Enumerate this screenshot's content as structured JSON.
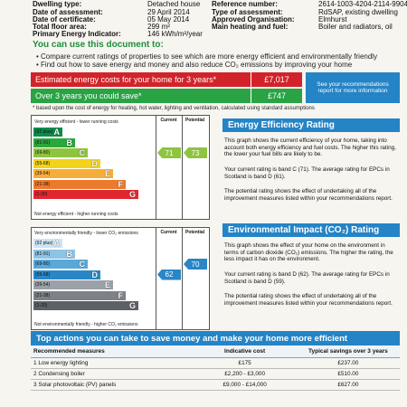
{
  "property": {
    "rows": [
      {
        "label": "Dwelling type:",
        "value": "Detached house"
      },
      {
        "label": "Date of assessment:",
        "value": "29 April 2014"
      },
      {
        "label": "Date of certificate:",
        "value": "05 May 2014"
      },
      {
        "label": "Total floor area:",
        "value": "299 m²"
      },
      {
        "label": "Primary Energy Indicator:",
        "value": "146 kWh/m²/year"
      }
    ],
    "right_rows": [
      {
        "label": "Reference number:",
        "value": "2614-1003-4204-2114-9904"
      },
      {
        "label": "Type of assessment:",
        "value": "RdSAP, existing dwelling"
      },
      {
        "label": "Approved Organisation:",
        "value": "Elmhurst"
      },
      {
        "label": "Main heating and fuel:",
        "value": "Boiler and radiators, oil"
      }
    ]
  },
  "use_doc": {
    "heading": "You can use this document to:",
    "bullets": [
      "Compare current ratings of properties to see which are more energy efficient and environmentally friendly",
      "Find out how to save energy and money and also reduce CO₂ emissions by improving your home"
    ]
  },
  "costs": {
    "estimated_label": "Estimated energy costs for your home for 3 years*",
    "estimated_value": "£7,017",
    "saving_label": "Over 3 years you could save*",
    "saving_value": "£747",
    "see_label": "See your recommendations report for more information",
    "footnote": "* based upon the cost of energy for heating, hot water, lighting and ventilation, calculated using standard assumptions"
  },
  "ee_chart": {
    "top_label": "Very energy efficient - lower running costs",
    "bottom_label": "Not energy efficient - higher running costs",
    "current_header": "Current",
    "potential_header": "Potential",
    "bands": [
      {
        "range": "(92 plus)",
        "letter": "A",
        "color": "#0f8a4a"
      },
      {
        "range": "(81-91)",
        "letter": "B",
        "color": "#2aa73d"
      },
      {
        "range": "(69-80)",
        "letter": "C",
        "color": "#8ec43f"
      },
      {
        "range": "(55-68)",
        "letter": "D",
        "color": "#f2d21a"
      },
      {
        "range": "(39-54)",
        "letter": "E",
        "color": "#f5ae3b"
      },
      {
        "range": "(21-38)",
        "letter": "F",
        "color": "#ec7a2c"
      },
      {
        "range": "(1-20)",
        "letter": "G",
        "color": "#e1272e"
      }
    ],
    "current_value": "71",
    "potential_value": "73",
    "arrow_color": "#8ec43f"
  },
  "ei_chart": {
    "top_label": "Very environmentally friendly - lower CO₂ emissions",
    "bottom_label": "Not environmentally friendly - higher CO₂ emissions",
    "current_header": "Current",
    "potential_header": "Potential",
    "bands": [
      {
        "range": "(92 plus)",
        "letter": "A",
        "color": "#cde4f2"
      },
      {
        "range": "(81-91)",
        "letter": "B",
        "color": "#8ec3e6"
      },
      {
        "range": "(69-80)",
        "letter": "C",
        "color": "#5aa7d8"
      },
      {
        "range": "(55-68)",
        "letter": "D",
        "color": "#2a86c6"
      },
      {
        "range": "(39-54)",
        "letter": "E",
        "color": "#9aa1a8"
      },
      {
        "range": "(21-38)",
        "letter": "F",
        "color": "#7c8288"
      },
      {
        "range": "(1-20)",
        "letter": "G",
        "color": "#5d6166"
      }
    ],
    "current_value": "62",
    "potential_value": "70",
    "arrow_color": "#2a86c6"
  },
  "eer": {
    "title": "Energy Efficiency Rating",
    "p1": "This graph shows the current efficiency of your home, taking into account both energy efficiency and fuel costs. The higher this rating, the lower your fuel bills are likely to be.",
    "p2": "Your current rating is band C (71). The average rating for EPCs in Scotland is band D (61).",
    "p3": "The potential rating shows the effect of undertaking all of the improvement measures listed within your recommendations report."
  },
  "eir": {
    "title": "Environmental Impact (CO₂) Rating",
    "p1": "This graph shows the effect of your home on the environment in terms of carbon dioxide (CO₂) emissions. The higher the rating, the less impact it has on the environment.",
    "p2": "Your current rating is band D (62). The average rating for EPCs in Scotland is band D (59).",
    "p3": "The potential rating shows the effect of undertaking all of the improvement measures listed within your recommendations report."
  },
  "actions": {
    "title": "Top actions you can take to save money and make your home more efficient",
    "headers": [
      "Recommended measures",
      "Indicative cost",
      "Typical savings over 3 years"
    ],
    "rows": [
      [
        "1 Low energy lighting",
        "£175",
        "£237.00"
      ],
      [
        "2 Condensing boiler",
        "£2,200 - £3,000",
        "£510.00"
      ],
      [
        "3 Solar photovoltaic (PV) panels",
        "£9,000 - £14,000",
        "£627.00"
      ]
    ]
  }
}
